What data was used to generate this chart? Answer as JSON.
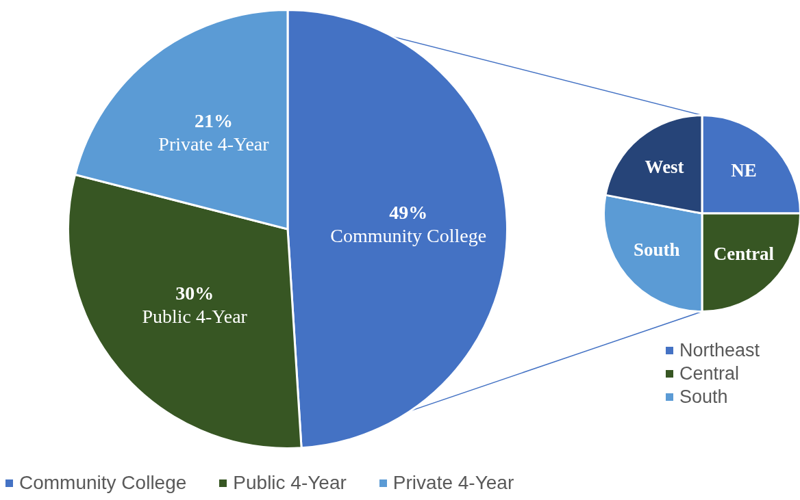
{
  "chart_data": [
    {
      "type": "pie",
      "categories": [
        "Community College",
        "Public 4-Year",
        "Private 4-Year"
      ],
      "values": [
        49,
        30,
        21
      ],
      "value_labels": [
        "49%",
        "30%",
        "21%"
      ],
      "colors": [
        "#4472c4",
        "#375623",
        "#5b9bd5"
      ],
      "legend": "bottom"
    },
    {
      "type": "pie",
      "categories": [
        "Northeast",
        "Central",
        "South",
        null
      ],
      "values": [
        25,
        25,
        28,
        22
      ],
      "value_labels": [
        "NE",
        "Central",
        "South",
        "West"
      ],
      "colors": [
        "#4472c4",
        "#375623",
        "#5b9bd5",
        "#264478"
      ],
      "legend": "bottom"
    }
  ]
}
